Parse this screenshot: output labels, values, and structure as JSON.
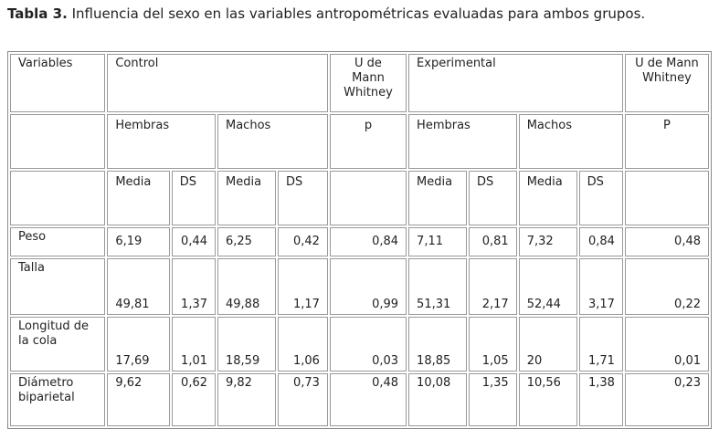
{
  "caption": {
    "label": "Tabla 3.",
    "text": "Influencia del sexo en las variables antropométricas evaluadas para ambos grupos."
  },
  "table": {
    "header_1": [
      "Variables",
      "Control",
      "U de Mann Whitney",
      "Experimental",
      "U de Mann Whitney"
    ],
    "header_2": [
      "Hembras",
      "Machos",
      "p",
      "Hembras",
      "Machos",
      "P"
    ],
    "header_3": [
      "Media",
      "DS",
      "Media",
      "DS",
      "Media",
      "DS",
      "Media",
      "DS"
    ],
    "rows": [
      {
        "label": "Peso",
        "values": [
          "6,19",
          "0,44",
          "6,25",
          "0,42",
          "0,84",
          "7,11",
          "0,81",
          "7,32",
          "0,84",
          "0,48"
        ]
      },
      {
        "label": "Talla",
        "values": [
          "49,81",
          "1,37",
          "49,88",
          "1,17",
          "0,99",
          "51,31",
          "2,17",
          "52,44",
          "3,17",
          "0,22"
        ]
      },
      {
        "label": "Longitud de la cola",
        "values": [
          "17,69",
          "1,01",
          "18,59",
          "1,06",
          "0,03",
          "18,85",
          "1,05",
          "20",
          "1,71",
          "0,01"
        ]
      },
      {
        "label": "Diámetro biparietal",
        "values": [
          "9,62",
          "0,62",
          "9,82",
          "0,73",
          "0,48",
          "10,08",
          "1,35",
          "10,56",
          "1,38",
          "0,23"
        ]
      }
    ]
  }
}
